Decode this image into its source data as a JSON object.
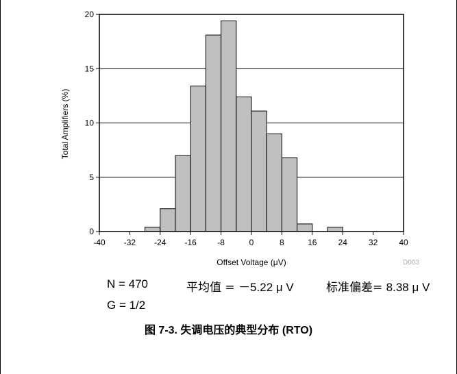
{
  "chart_data": {
    "type": "bar",
    "histogram": true,
    "bin_width": 4,
    "bins_start": [
      -28,
      -24,
      -20,
      -16,
      -12,
      -8,
      -4,
      0,
      4,
      8,
      12,
      16,
      20,
      24
    ],
    "values": [
      0.4,
      2.1,
      7.0,
      13.4,
      18.1,
      19.4,
      12.4,
      11.1,
      9.0,
      6.8,
      0.7,
      0.0,
      0.4,
      0.0
    ],
    "xlabel": "Offset Voltage (μV)",
    "ylabel": "Total Amplifiers (%)",
    "xlim": [
      -40,
      40
    ],
    "ylim": [
      0,
      20
    ],
    "xticks": [
      -40,
      -32,
      -24,
      -16,
      -8,
      0,
      8,
      16,
      24,
      32,
      40
    ],
    "yticks": [
      0,
      5,
      10,
      15,
      20
    ],
    "grid": "horizontal",
    "bar_color": "#bfbfbf",
    "watermark": "D003"
  },
  "stats": {
    "n": "N = 470",
    "mean_label": "平均值 = ",
    "mean_value": "－5.22 μ V",
    "std_label": "标准偏差= ",
    "std_value": "8.38 μ V",
    "g": "G = 1/2"
  },
  "caption": "图 7-3. 失调电压的典型分布 (RTO)"
}
